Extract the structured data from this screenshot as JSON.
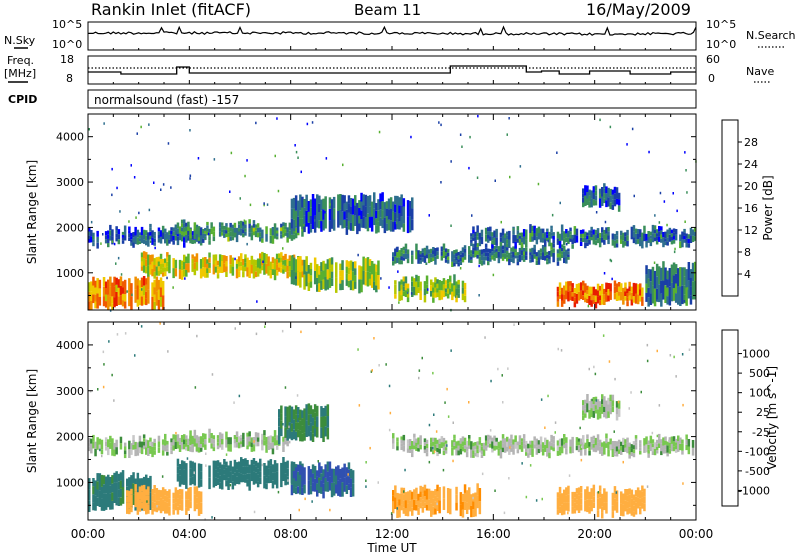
{
  "header": {
    "station": "Rankin Inlet (fitACF)",
    "beam": "Beam 11",
    "date": "16/May/2009"
  },
  "noise_panel": {
    "left_label": "N.Sky",
    "left_ticks": [
      "10^5",
      "10^0"
    ],
    "right_ticks": [
      "10^5",
      "10^0"
    ],
    "right_label": "N.Search"
  },
  "freq_panel": {
    "left_label_1": "Freq.",
    "left_label_2": "[MHz]",
    "left_ticks": [
      "18",
      "8"
    ],
    "right_ticks": [
      "60",
      "0"
    ],
    "right_label": "Nave"
  },
  "cpid_panel": {
    "label": "CPID",
    "text": "normalsound (fast) -157"
  },
  "colors": {
    "power": [
      "#0000ff",
      "#1a3fa6",
      "#2e6e8e",
      "#3a8f5a",
      "#58b030",
      "#b7c800",
      "#f0c800",
      "#f09000",
      "#f05a00",
      "#e81c00",
      "#d80000"
    ],
    "velocity": [
      "#e01010",
      "#ff5000",
      "#ff8c00",
      "#ffae40",
      "#c8c8c8",
      "#b4b4b4",
      "#78c850",
      "#3c8c3c",
      "#2c7a7a",
      "#3050b0",
      "#1030d0"
    ]
  },
  "chart_data": [
    {
      "type": "heatmap",
      "parameter": "Power",
      "ylabel": "Slant Range [km]",
      "xlabel": "Time UT",
      "xlim": [
        "00:00",
        "24:00"
      ],
      "x_ticks": [
        "00:00",
        "04:00",
        "08:00",
        "12:00",
        "16:00",
        "20:00",
        "00:00"
      ],
      "ylim": [
        180,
        4500
      ],
      "y_ticks": [
        "1000",
        "2000",
        "3000",
        "4000"
      ],
      "colorbar": {
        "label": "Power [dB]",
        "range": [
          0,
          32
        ],
        "ticks": [
          "4",
          "8",
          "12",
          "16",
          "20",
          "24",
          "28"
        ]
      },
      "echo_bands": [
        {
          "start": "00:00",
          "end": "03:00",
          "range_low": 200,
          "range_high": 900,
          "value": 22
        },
        {
          "start": "00:00",
          "end": "04:30",
          "range_low": 1600,
          "range_high": 2000,
          "value": 6
        },
        {
          "start": "02:00",
          "end": "08:30",
          "range_low": 900,
          "range_high": 1400,
          "value": 18
        },
        {
          "start": "03:30",
          "end": "08:30",
          "range_low": 1700,
          "range_high": 2100,
          "value": 10
        },
        {
          "start": "08:00",
          "end": "11:30",
          "range_low": 600,
          "range_high": 1300,
          "value": 14
        },
        {
          "start": "08:00",
          "end": "13:00",
          "range_low": 1900,
          "range_high": 2700,
          "value": 6
        },
        {
          "start": "12:00",
          "end": "19:00",
          "range_low": 1200,
          "range_high": 1600,
          "value": 8
        },
        {
          "start": "12:00",
          "end": "15:00",
          "range_low": 400,
          "range_high": 900,
          "value": 14
        },
        {
          "start": "15:00",
          "end": "24:00",
          "range_low": 1600,
          "range_high": 2000,
          "value": 7
        },
        {
          "start": "18:30",
          "end": "22:00",
          "range_low": 300,
          "range_high": 800,
          "value": 24
        },
        {
          "start": "19:30",
          "end": "21:00",
          "range_low": 2400,
          "range_high": 2900,
          "value": 6
        },
        {
          "start": "22:00",
          "end": "24:00",
          "range_low": 300,
          "range_high": 1200,
          "value": 8
        }
      ]
    },
    {
      "type": "heatmap",
      "parameter": "Velocity",
      "ylabel": "Slant Range [km]",
      "xlabel": "Time UT",
      "xlim": [
        "00:00",
        "24:00"
      ],
      "x_ticks": [
        "00:00",
        "04:00",
        "08:00",
        "12:00",
        "16:00",
        "20:00",
        "00:00"
      ],
      "ylim": [
        180,
        4500
      ],
      "y_ticks": [
        "1000",
        "2000",
        "3000",
        "4000"
      ],
      "colorbar": {
        "label": "Velocity [m s^-1]",
        "ticks": [
          "1000",
          "500",
          "100",
          "25",
          "-25",
          "-100",
          "-500",
          "-1000"
        ]
      },
      "echo_bands": [
        {
          "start": "00:00",
          "end": "02:30",
          "range_low": 400,
          "range_high": 1200,
          "value": 150
        },
        {
          "start": "00:00",
          "end": "04:30",
          "range_low": 1600,
          "range_high": 2000,
          "value": 0
        },
        {
          "start": "01:30",
          "end": "04:30",
          "range_low": 300,
          "range_high": 900,
          "value": -200
        },
        {
          "start": "03:30",
          "end": "08:30",
          "range_low": 900,
          "range_high": 1500,
          "value": 200
        },
        {
          "start": "04:00",
          "end": "08:00",
          "range_low": 1700,
          "range_high": 2100,
          "value": 0
        },
        {
          "start": "07:30",
          "end": "09:30",
          "range_low": 1900,
          "range_high": 2700,
          "value": 100
        },
        {
          "start": "08:00",
          "end": "10:30",
          "range_low": 700,
          "range_high": 1400,
          "value": 500
        },
        {
          "start": "12:00",
          "end": "15:30",
          "range_low": 300,
          "range_high": 900,
          "value": -400
        },
        {
          "start": "12:00",
          "end": "24:00",
          "range_low": 1600,
          "range_high": 2000,
          "value": 0
        },
        {
          "start": "18:30",
          "end": "22:00",
          "range_low": 300,
          "range_high": 900,
          "value": -300
        },
        {
          "start": "19:30",
          "end": "21:00",
          "range_low": 2400,
          "range_high": 2900,
          "value": 0
        }
      ]
    }
  ],
  "axis_title": "Time UT"
}
